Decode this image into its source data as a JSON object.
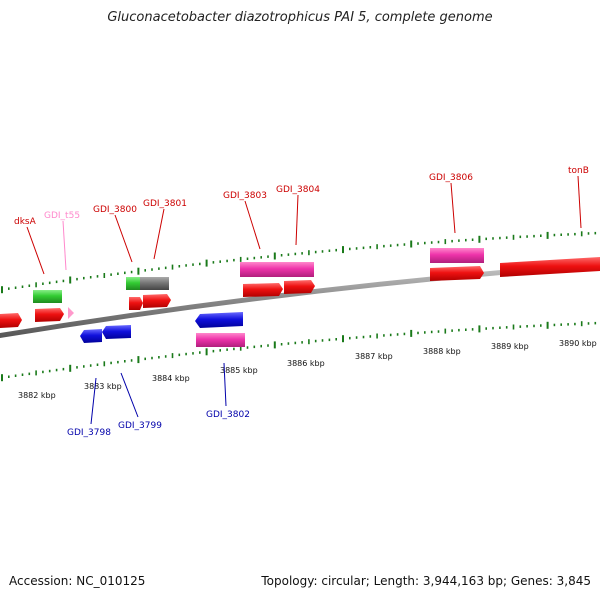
{
  "title": "Gluconacetobacter diazotrophicus PAI 5, complete genome",
  "footer": {
    "accession": "Accession: NC_010125",
    "summary": "Topology: circular; Length: 3,944,163 bp; Genes: 3,845"
  },
  "colors": {
    "forward_cds": "#ee1111",
    "reverse_cds": "#1111dd",
    "rna": "#ee33aa",
    "trna": "#33cc33",
    "pseudo": "#777777",
    "tick": "#1a7a1a",
    "backbone": "#888888",
    "label_forward": "#cc0000",
    "label_reverse": "#0000aa",
    "label_trna": "#ff88cc"
  },
  "kbp_labels": [
    "3882 kbp",
    "3883 kbp",
    "3884 kbp",
    "3885 kbp",
    "3886 kbp",
    "3887 kbp",
    "3888 kbp",
    "3889 kbp",
    "3890 kbp"
  ],
  "gene_labels": [
    {
      "text": "dksA",
      "strand": "forward"
    },
    {
      "text": "GDI_t55",
      "strand": "trna"
    },
    {
      "text": "GDI_3800",
      "strand": "forward"
    },
    {
      "text": "GDI_3801",
      "strand": "forward"
    },
    {
      "text": "GDI_3803",
      "strand": "forward"
    },
    {
      "text": "GDI_3804",
      "strand": "forward"
    },
    {
      "text": "GDI_3806",
      "strand": "forward"
    },
    {
      "text": "tonB",
      "strand": "forward"
    },
    {
      "text": "GDI_3798",
      "strand": "reverse"
    },
    {
      "text": "GDI_3799",
      "strand": "reverse"
    },
    {
      "text": "GDI_3802",
      "strand": "reverse"
    }
  ]
}
